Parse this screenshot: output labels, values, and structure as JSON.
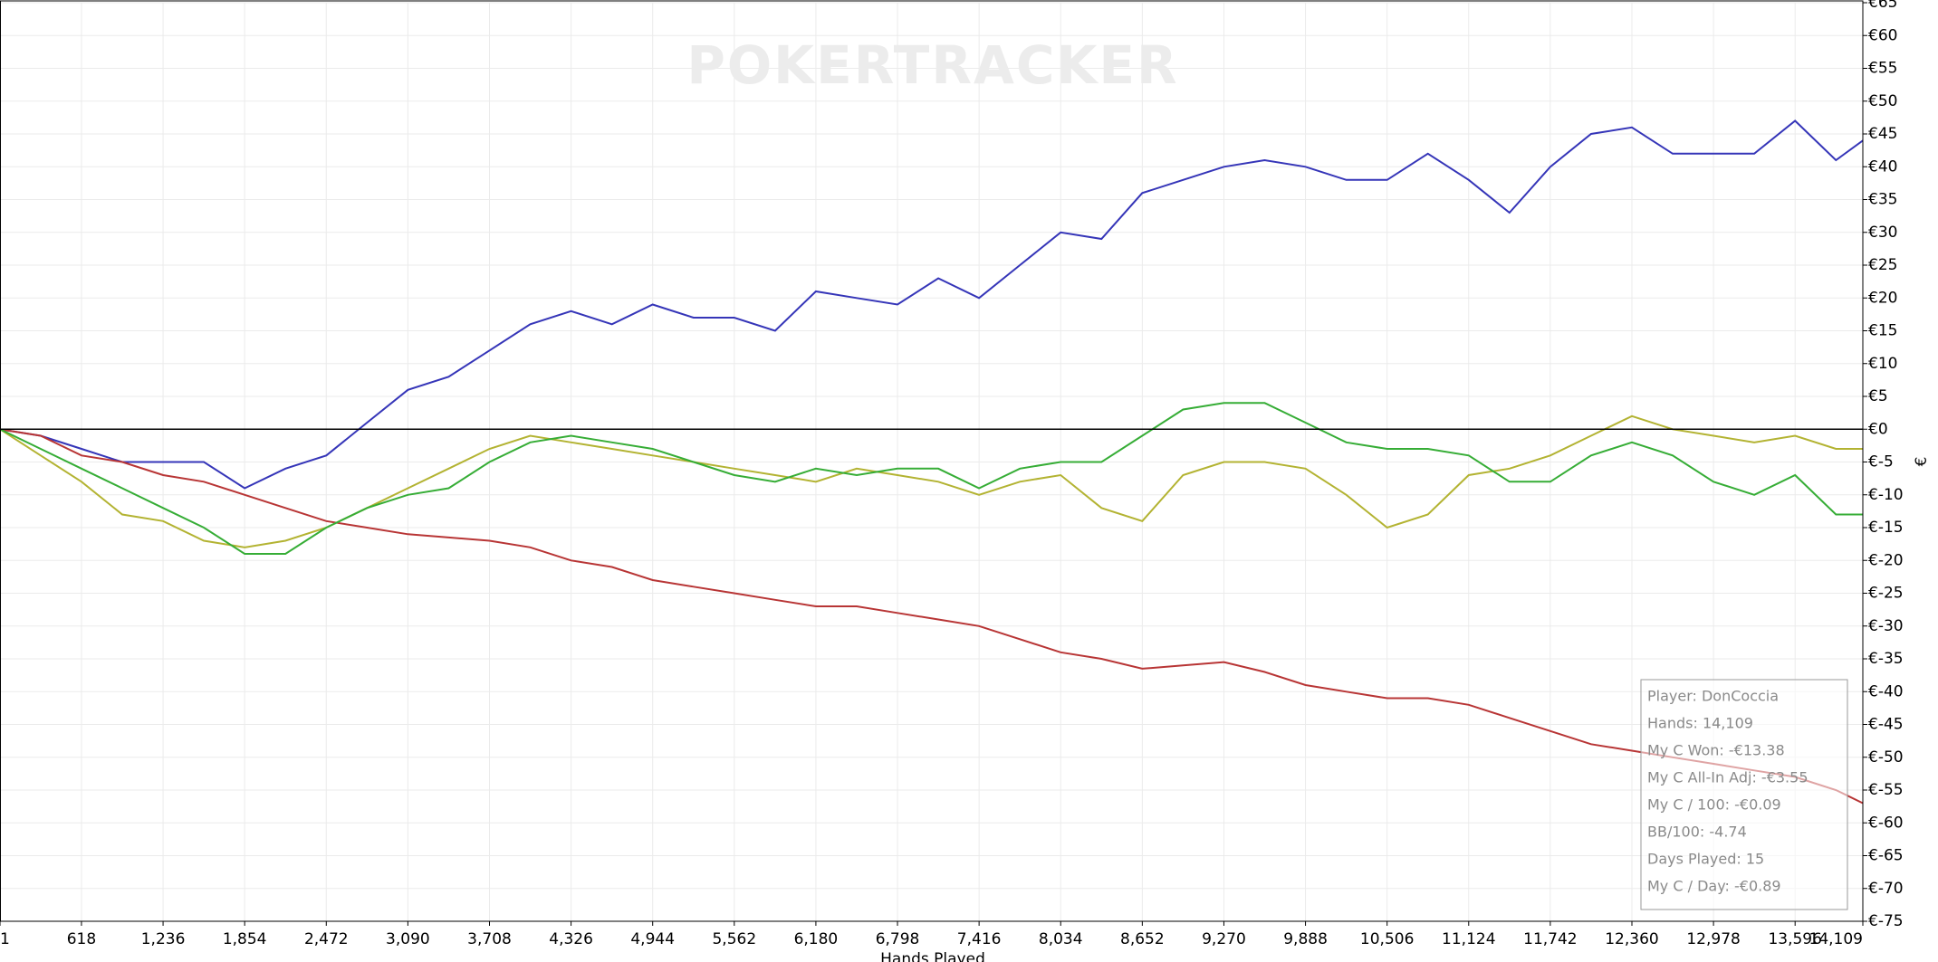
{
  "chart_data": {
    "type": "line",
    "watermark": "POKERTRACKER",
    "xlabel": "Hands Played",
    "ylabel": "€",
    "x": [
      1,
      309,
      618,
      927,
      1236,
      1545,
      1854,
      2163,
      2472,
      2781,
      3090,
      3399,
      3708,
      4017,
      4326,
      4635,
      4944,
      5253,
      5562,
      5871,
      6180,
      6489,
      6798,
      7107,
      7416,
      7725,
      8034,
      8343,
      8652,
      8961,
      9270,
      9579,
      9888,
      10197,
      10506,
      10815,
      11124,
      11433,
      11742,
      12051,
      12360,
      12669,
      12978,
      13287,
      13596,
      13905,
      14109
    ],
    "series": [
      {
        "color": "#3535b8",
        "values": [
          0,
          -1,
          -3,
          -5,
          -5,
          -5,
          -9,
          -6,
          -4,
          1,
          6,
          8,
          12,
          16,
          18,
          16,
          19,
          17,
          17,
          15,
          21,
          20,
          19,
          23,
          20,
          25,
          30,
          29,
          36,
          38,
          40,
          41,
          40,
          38,
          38,
          42,
          38,
          33,
          40,
          45,
          46,
          42,
          42,
          42,
          47,
          41,
          44
        ]
      },
      {
        "color": "#b83535",
        "values": [
          0,
          -1,
          -4,
          -5,
          -7,
          -8,
          -10,
          -12,
          -14,
          -15,
          -16,
          -16.5,
          -17,
          -18,
          -20,
          -21,
          -23,
          -24,
          -25,
          -26,
          -27,
          -27,
          -28,
          -29,
          -30,
          -32,
          -34,
          -35,
          -36.5,
          -36,
          -35.5,
          -37,
          -39,
          -40,
          -41,
          -41,
          -42,
          -44,
          -46,
          -48,
          -49,
          -50,
          -51,
          -52,
          -53,
          -55,
          -57
        ]
      },
      {
        "color": "#b3b332",
        "values": [
          0,
          -4,
          -8,
          -13,
          -14,
          -17,
          -18,
          -17,
          -15,
          -12,
          -9,
          -6,
          -3,
          -1,
          -2,
          -3,
          -4,
          -5,
          -6,
          -7,
          -8,
          -6,
          -7,
          -8,
          -10,
          -8,
          -7,
          -12,
          -14,
          -7,
          -5,
          -5,
          -6,
          -10,
          -15,
          -13,
          -7,
          -6,
          -4,
          -1,
          2,
          0,
          -1,
          -2,
          -1,
          -3,
          -3
        ]
      },
      {
        "color": "#36ad36",
        "values": [
          0,
          -3,
          -6,
          -9,
          -12,
          -15,
          -19,
          -19,
          -15,
          -12,
          -10,
          -9,
          -5,
          -2,
          -1,
          -2,
          -3,
          -5,
          -7,
          -8,
          -6,
          -7,
          -6,
          -6,
          -9,
          -6,
          -5,
          -5,
          -1,
          3,
          4,
          4,
          1,
          -2,
          -3,
          -3,
          -4,
          -8,
          -8,
          -4,
          -2,
          -4,
          -8,
          -10,
          -7,
          -13,
          -13
        ]
      }
    ],
    "xlim": [
      1,
      14109
    ],
    "xticks": [
      1,
      618,
      {
        "value": 1236,
        "label": "1,236"
      },
      {
        "value": 1854,
        "label": "1,854"
      },
      {
        "value": 2472,
        "label": "2,472"
      },
      {
        "value": 3090,
        "label": "3,090"
      },
      {
        "value": 3708,
        "label": "3,708"
      },
      {
        "value": 4326,
        "label": "4,326"
      },
      {
        "value": 4944,
        "label": "4,944"
      },
      {
        "value": 5562,
        "label": "5,562"
      },
      {
        "value": 6180,
        "label": "6,180"
      },
      {
        "value": 6798,
        "label": "6,798"
      },
      {
        "value": 7416,
        "label": "7,416"
      },
      {
        "value": 8034,
        "label": "8,034"
      },
      {
        "value": 8652,
        "label": "8,652"
      },
      {
        "value": 9270,
        "label": "9,270"
      },
      {
        "value": 9888,
        "label": "9,888"
      },
      {
        "value": 10506,
        "label": "10,506"
      },
      {
        "value": 11124,
        "label": "11,124"
      },
      {
        "value": 11742,
        "label": "11,742"
      },
      {
        "value": 12360,
        "label": "12,360"
      },
      {
        "value": 12978,
        "label": "12,978"
      },
      {
        "value": 13596,
        "label": "13,596"
      },
      {
        "value": 14109,
        "label": "14,109"
      }
    ],
    "ylim": [
      -75,
      65
    ],
    "yticks": [
      {
        "value": -75,
        "label": "€-75"
      },
      {
        "value": -70,
        "label": "€-70"
      },
      {
        "value": -65,
        "label": "€-65"
      },
      {
        "value": -60,
        "label": "€-60"
      },
      {
        "value": -55,
        "label": "€-55"
      },
      {
        "value": -50,
        "label": "€-50"
      },
      {
        "value": -45,
        "label": "€-45"
      },
      {
        "value": -40,
        "label": "€-40"
      },
      {
        "value": -35,
        "label": "€-35"
      },
      {
        "value": -30,
        "label": "€-30"
      },
      {
        "value": -25,
        "label": "€-25"
      },
      {
        "value": -20,
        "label": "€-20"
      },
      {
        "value": -15,
        "label": "€-15"
      },
      {
        "value": -10,
        "label": "€-10"
      },
      {
        "value": -5,
        "label": "€-5"
      },
      {
        "value": 0,
        "label": "€0"
      },
      {
        "value": 5,
        "label": "€5"
      },
      {
        "value": 10,
        "label": "€10"
      },
      {
        "value": 15,
        "label": "€15"
      },
      {
        "value": 20,
        "label": "€20"
      },
      {
        "value": 25,
        "label": "€25"
      },
      {
        "value": 30,
        "label": "€30"
      },
      {
        "value": 35,
        "label": "€35"
      },
      {
        "value": 40,
        "label": "€40"
      },
      {
        "value": 45,
        "label": "€45"
      },
      {
        "value": 50,
        "label": "€50"
      },
      {
        "value": 55,
        "label": "€55"
      },
      {
        "value": 60,
        "label": "€60"
      },
      {
        "value": 65,
        "label": "€65"
      }
    ],
    "grid": true,
    "annotations": [
      "Player: DonCoccia",
      "Hands: 14,109",
      "My C Won: -€13.38",
      "My C All-In Adj: -€3.55",
      "My C / 100: -€0.09",
      "BB/100: -4.74",
      "Days Played: 15",
      "My C / Day: -€0.89"
    ]
  }
}
